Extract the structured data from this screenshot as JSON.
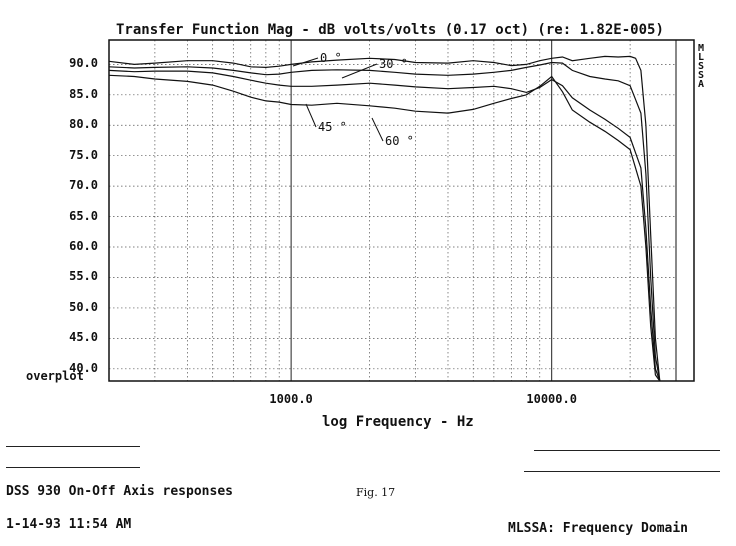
{
  "chart_data": {
    "type": "line",
    "title": "Transfer Function Mag - dB volts/volts (0.17 oct) (re: 1.82E-005)",
    "xlabel": "log Frequency - Hz",
    "ylabel": "",
    "x_scale": "log",
    "xlim": [
      200,
      30000
    ],
    "ylim": [
      38,
      94
    ],
    "grid": true,
    "y_ticks": [
      "90.0",
      "85.0",
      "80.0",
      "75.0",
      "70.0",
      "65.0",
      "60.0",
      "55.0",
      "50.0",
      "45.0",
      "40.0"
    ],
    "x_ticks": [
      "1000.0",
      "10000.0"
    ],
    "bottom_caption": "overplot",
    "side_label": "MLSSA",
    "annotations": [
      "0 °",
      "30 °",
      "45 °",
      "60 °"
    ],
    "series": [
      {
        "name": "0 °",
        "x": [
          200,
          250,
          300,
          400,
          500,
          600,
          700,
          800,
          900,
          1000,
          1200,
          1500,
          2000,
          2500,
          3000,
          4000,
          5000,
          6000,
          7000,
          8000,
          9000,
          10000,
          11000,
          12000,
          14000,
          16000,
          18000,
          20000,
          21000,
          22000,
          23000,
          24000,
          25000,
          26000
        ],
        "y": [
          90.5,
          90.0,
          90.2,
          90.6,
          90.6,
          90.2,
          89.6,
          89.5,
          89.7,
          90.0,
          90.4,
          90.7,
          91.0,
          90.8,
          90.3,
          90.2,
          90.6,
          90.3,
          89.8,
          90.0,
          90.6,
          91.0,
          91.2,
          90.6,
          91.0,
          91.3,
          91.2,
          91.3,
          91.0,
          89.0,
          80.0,
          62.0,
          45.0,
          38.0
        ]
      },
      {
        "name": "30 °",
        "x": [
          200,
          250,
          300,
          400,
          500,
          600,
          700,
          800,
          900,
          1000,
          1200,
          1500,
          2000,
          2500,
          3000,
          4000,
          5000,
          6000,
          7000,
          8000,
          9000,
          10000,
          11000,
          12000,
          14000,
          16000,
          18000,
          20000,
          22000,
          23000,
          24000,
          25000,
          26000
        ],
        "y": [
          89.6,
          89.4,
          89.5,
          89.6,
          89.4,
          89.0,
          88.6,
          88.3,
          88.4,
          88.7,
          89.0,
          89.1,
          89.0,
          88.7,
          88.4,
          88.2,
          88.4,
          88.7,
          89.0,
          89.5,
          89.9,
          90.3,
          90.2,
          89.0,
          88.0,
          87.6,
          87.3,
          86.5,
          82.0,
          72.0,
          55.0,
          42.0,
          38.0
        ]
      },
      {
        "name": "45 °",
        "x": [
          200,
          250,
          300,
          400,
          500,
          600,
          700,
          800,
          900,
          1000,
          1200,
          1500,
          2000,
          2500,
          3000,
          4000,
          5000,
          6000,
          7000,
          8000,
          9000,
          10000,
          11000,
          12000,
          14000,
          16000,
          18000,
          20000,
          22000,
          23000,
          24000,
          25000,
          26000
        ],
        "y": [
          89.0,
          88.8,
          88.9,
          88.9,
          88.6,
          88.0,
          87.4,
          86.9,
          86.6,
          86.4,
          86.4,
          86.6,
          86.9,
          86.6,
          86.3,
          86.0,
          86.2,
          86.4,
          86.0,
          85.4,
          86.2,
          87.5,
          86.5,
          84.5,
          82.5,
          81.0,
          79.5,
          78.0,
          73.0,
          63.0,
          50.0,
          40.0,
          38.0
        ]
      },
      {
        "name": "60 °",
        "x": [
          200,
          250,
          300,
          400,
          500,
          600,
          700,
          800,
          900,
          1000,
          1200,
          1500,
          2000,
          2500,
          3000,
          4000,
          5000,
          6000,
          7000,
          8000,
          9000,
          10000,
          11000,
          12000,
          14000,
          16000,
          18000,
          20000,
          22000,
          23000,
          24000,
          25000,
          26000
        ],
        "y": [
          88.2,
          88.0,
          87.6,
          87.2,
          86.6,
          85.6,
          84.6,
          84.0,
          83.8,
          83.4,
          83.3,
          83.6,
          83.2,
          82.8,
          82.3,
          82.0,
          82.6,
          83.6,
          84.4,
          85.0,
          86.4,
          88.0,
          85.5,
          82.5,
          80.5,
          79.0,
          77.5,
          76.0,
          70.0,
          60.0,
          47.0,
          39.0,
          38.0
        ]
      }
    ]
  },
  "footer": {
    "left_line1": "DSS 930 On-Off  Axis responses",
    "figure": "Fig. 17",
    "date": "1-14-93 11:54 AM",
    "app": "MLSSA: Frequency Domain"
  }
}
